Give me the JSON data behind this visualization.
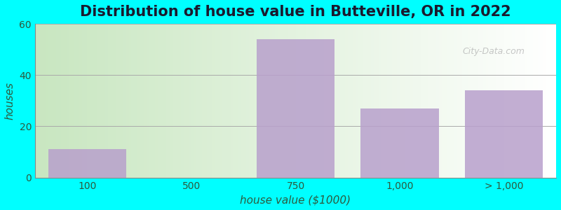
{
  "title": "Distribution of house value in Butteville, OR in 2022",
  "xlabel": "house value ($1000)",
  "ylabel": "houses",
  "categories": [
    "100",
    "500",
    "750",
    "1,000",
    "> 1,000"
  ],
  "values": [
    11,
    0,
    54,
    27,
    34
  ],
  "bar_color": "#b8a0cc",
  "bar_alpha": 0.85,
  "ylim": [
    0,
    60
  ],
  "yticks": [
    0,
    20,
    40,
    60
  ],
  "background_outer": "#00ffff",
  "background_inner_left": "#c8e6c0",
  "background_inner_right": "#ffffff",
  "title_fontsize": 15,
  "axis_label_fontsize": 11,
  "tick_fontsize": 10,
  "title_color": "#1a1a2e",
  "label_color": "#2d5a3d",
  "tick_color": "#2d5a3d",
  "watermark_text": "City-Data.com"
}
